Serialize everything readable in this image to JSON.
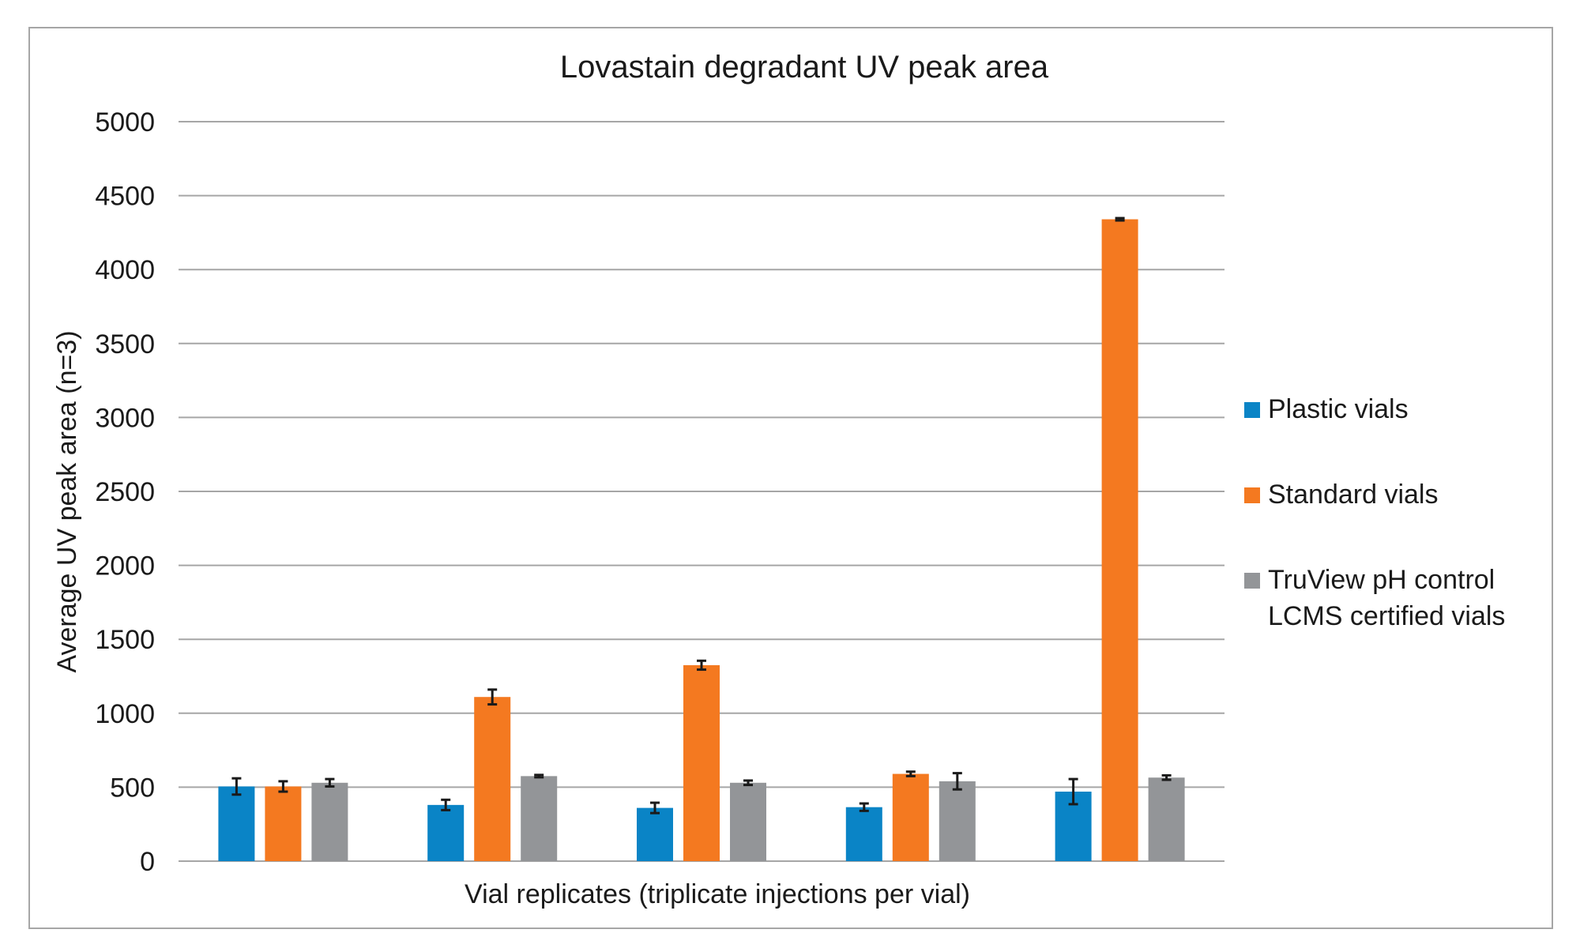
{
  "chart_data": {
    "type": "bar",
    "title": "Lovastain degradant UV peak area",
    "xlabel": "Vial replicates (triplicate injections per vial)",
    "ylabel": "Average UV peak area (n=3)",
    "ylim": [
      0,
      5000
    ],
    "yticks": [
      0,
      500,
      1000,
      1500,
      2000,
      2500,
      3000,
      3500,
      4000,
      4500,
      5000
    ],
    "categories": [
      "",
      "",
      "",
      "",
      ""
    ],
    "series": [
      {
        "name": "Plastic vials",
        "color": "#0a84c6",
        "values": [
          505,
          380,
          360,
          365,
          470
        ],
        "errors": [
          55,
          35,
          35,
          25,
          85
        ]
      },
      {
        "name": "Standard vials",
        "color": "#f47920",
        "values": [
          505,
          1110,
          1325,
          590,
          4340
        ],
        "errors": [
          35,
          50,
          30,
          15,
          8
        ]
      },
      {
        "name": "TruView pH control LCMS certified vials",
        "color": "#939598",
        "values": [
          530,
          575,
          530,
          540,
          565
        ],
        "errors": [
          25,
          8,
          15,
          55,
          15
        ]
      }
    ],
    "legend_position": "right",
    "grid": true
  },
  "legend": {
    "items": [
      {
        "label": "Plastic vials",
        "color": "#0a84c6"
      },
      {
        "label": "Standard vials",
        "color": "#f47920"
      },
      {
        "label": "TruView pH control LCMS certified vials",
        "color": "#939598"
      }
    ]
  }
}
